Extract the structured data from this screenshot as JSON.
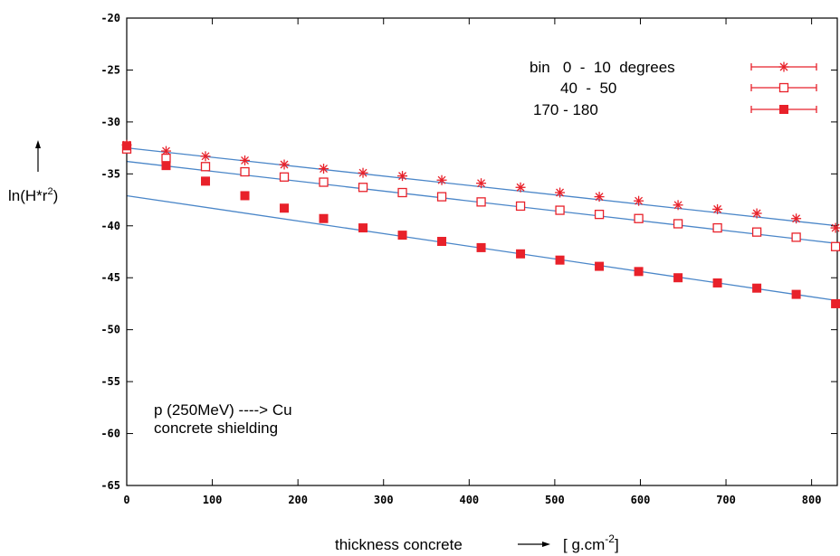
{
  "chart_data": {
    "type": "scatter",
    "title": "",
    "xlabel": "thickness concrete",
    "xunit_prefix": "[ g.cm",
    "xunit_exp": "-2",
    "xunit_suffix": "]",
    "ylabel_prefix": "ln(H*r",
    "ylabel_exp": "2",
    "ylabel_suffix": ")",
    "xlim": [
      0,
      830
    ],
    "ylim": [
      -65,
      -20
    ],
    "xticks": [
      0,
      100,
      200,
      300,
      400,
      500,
      600,
      700,
      800
    ],
    "yticks": [
      -20,
      -25,
      -30,
      -35,
      -40,
      -45,
      -50,
      -55,
      -60,
      -65
    ],
    "grid": false,
    "legend_position": "top-right",
    "annotation": [
      "p (250MeV) ----> Cu",
      "concrete shielding"
    ],
    "x": [
      0,
      46,
      92,
      138,
      184,
      230,
      276,
      322,
      368,
      414,
      460,
      506,
      552,
      598,
      644,
      690,
      736,
      782,
      828
    ],
    "series": [
      {
        "name": "bin   0  -  10  degrees",
        "marker": "star",
        "color": "#e8212a",
        "values": [
          -32.2,
          -32.8,
          -33.3,
          -33.7,
          -34.1,
          -34.5,
          -34.9,
          -35.2,
          -35.6,
          -35.9,
          -36.3,
          -36.8,
          -37.2,
          -37.6,
          -38.0,
          -38.4,
          -38.8,
          -39.3,
          -40.2
        ]
      },
      {
        "name": "40  -  50",
        "marker": "open-square",
        "color": "#e8212a",
        "values": [
          -32.6,
          -33.5,
          -34.3,
          -34.8,
          -35.3,
          -35.8,
          -36.3,
          -36.8,
          -37.2,
          -37.7,
          -38.1,
          -38.5,
          -38.9,
          -39.3,
          -39.8,
          -40.2,
          -40.6,
          -41.1,
          -42.0
        ]
      },
      {
        "name": "170 - 180",
        "marker": "filled-square",
        "color": "#e8212a",
        "values": [
          -32.3,
          -34.2,
          -35.7,
          -37.1,
          -38.3,
          -39.3,
          -40.2,
          -40.9,
          -41.5,
          -42.1,
          -42.7,
          -43.3,
          -43.9,
          -44.4,
          -45.0,
          -45.5,
          -46.0,
          -46.6,
          -47.5
        ]
      }
    ],
    "fit_lines": [
      {
        "color": "#4a86c8",
        "x": [
          0,
          830
        ],
        "values": [
          -32.5,
          -40.0
        ]
      },
      {
        "color": "#4a86c8",
        "x": [
          0,
          830
        ],
        "values": [
          -33.8,
          -41.7
        ]
      },
      {
        "color": "#4a86c8",
        "x": [
          0,
          830
        ],
        "values": [
          -37.1,
          -47.2
        ]
      }
    ]
  }
}
